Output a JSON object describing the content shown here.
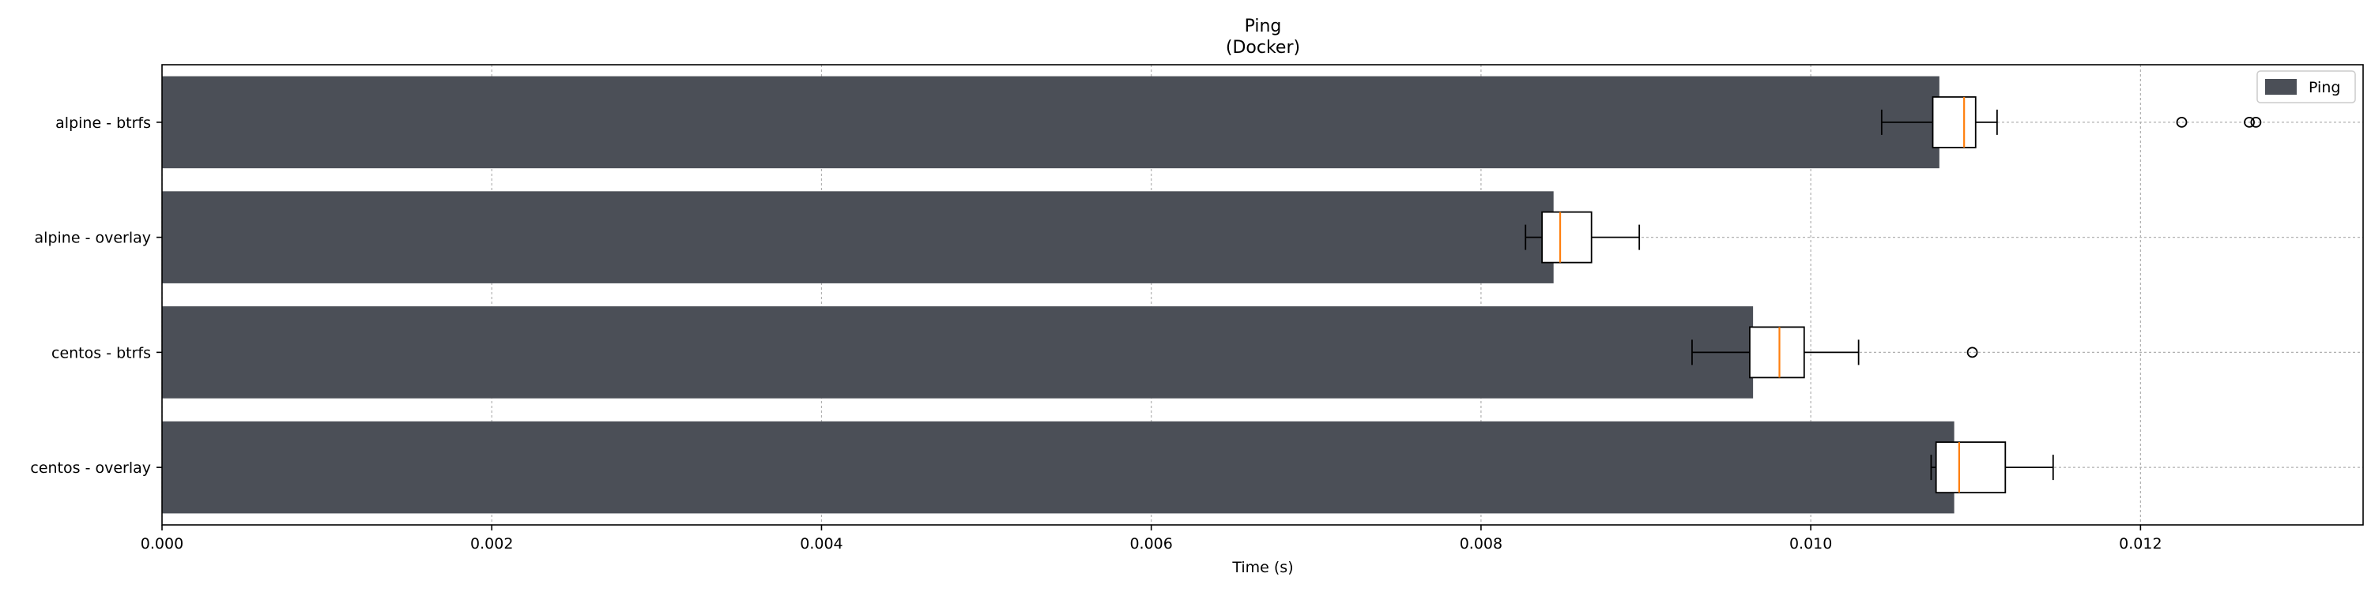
{
  "chart_data": {
    "type": "bar",
    "orientation": "horizontal",
    "title": "Ping",
    "subtitle": "(Docker)",
    "xlabel": "Time (s)",
    "ylabel": "",
    "xlim": [
      0,
      0.01335
    ],
    "xticks": [
      0.0,
      0.002,
      0.004,
      0.006,
      0.008,
      0.01,
      0.012
    ],
    "xtick_labels": [
      "0.000",
      "0.002",
      "0.004",
      "0.006",
      "0.008",
      "0.010",
      "0.012"
    ],
    "grid": true,
    "legend": {
      "placement": "top-right",
      "entries": [
        {
          "label": "Ping",
          "color": "#4b4f57"
        }
      ]
    },
    "bar_color": "#4b4f57",
    "median_color": "#ff7f0e",
    "categories": [
      "alpine - btrfs",
      "alpine - overlay",
      "centos - btrfs",
      "centos - overlay"
    ],
    "values": [
      0.01078,
      0.00844,
      0.00965,
      0.01087
    ],
    "boxplots": [
      {
        "category": "alpine - btrfs",
        "whisker_low": 0.01043,
        "q1": 0.01074,
        "median": 0.01093,
        "q3": 0.011,
        "whisker_high": 0.01113,
        "outliers": [
          0.01225,
          0.01266,
          0.0127
        ]
      },
      {
        "category": "alpine - overlay",
        "whisker_low": 0.00827,
        "q1": 0.00837,
        "median": 0.00848,
        "q3": 0.00867,
        "whisker_high": 0.00896,
        "outliers": []
      },
      {
        "category": "centos - btrfs",
        "whisker_low": 0.00928,
        "q1": 0.00963,
        "median": 0.00981,
        "q3": 0.00996,
        "whisker_high": 0.01029,
        "outliers": [
          0.01098
        ]
      },
      {
        "category": "centos - overlay",
        "whisker_low": 0.01073,
        "q1": 0.01076,
        "median": 0.0109,
        "q3": 0.01118,
        "whisker_high": 0.01147,
        "outliers": []
      }
    ]
  }
}
